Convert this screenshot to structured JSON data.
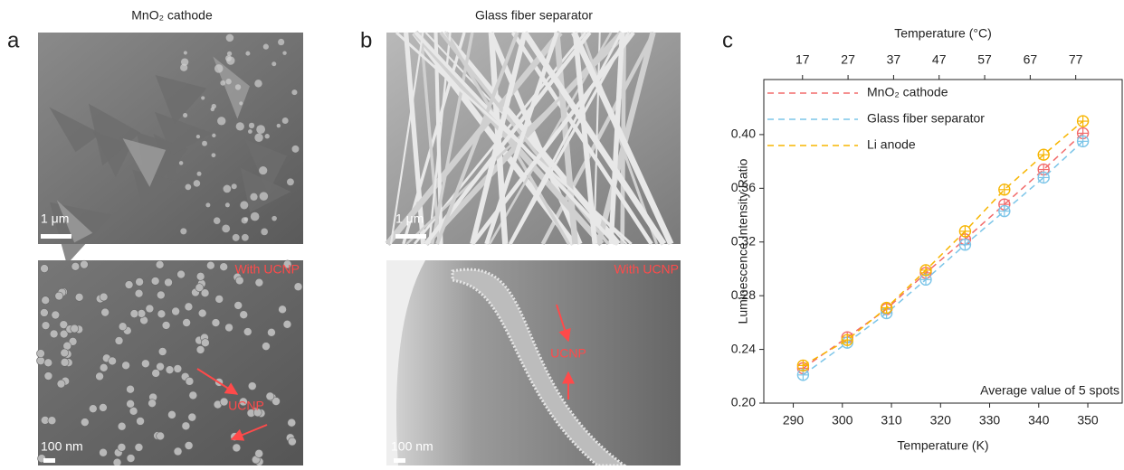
{
  "panels": [
    {
      "label": "a",
      "title": "MnO₂ cathode",
      "top_scale": "1 μm",
      "bottom_note": "With UCNP",
      "bottom_arrow_label": "UCNP",
      "bottom_scale": "100 nm"
    },
    {
      "label": "b",
      "title": "Glass fiber separator",
      "top_scale": "1 μm",
      "bottom_note": "With UCNP",
      "bottom_arrow_label": "UCNP",
      "bottom_scale": "100 nm"
    }
  ],
  "chart_panel_label": "c",
  "chart_data": {
    "type": "scatter",
    "xlabel": "Temperature (K)",
    "x2label": "Temperature (°C)",
    "ylabel": "Luminescence Intensity Ratio",
    "annotation": "Average value of 5 spots",
    "x": [
      292,
      301,
      309,
      317,
      325,
      333,
      341,
      349
    ],
    "series": [
      {
        "name": "MnO₂ cathode",
        "color": "#f26b6b",
        "values": [
          0.226,
          0.249,
          0.27,
          0.297,
          0.322,
          0.348,
          0.374,
          0.401
        ]
      },
      {
        "name": "Glass fiber separator",
        "color": "#7cc5e8",
        "values": [
          0.221,
          0.245,
          0.267,
          0.292,
          0.318,
          0.343,
          0.368,
          0.395
        ]
      },
      {
        "name": "Li anode",
        "color": "#f7b500",
        "values": [
          0.228,
          0.247,
          0.271,
          0.299,
          0.328,
          0.359,
          0.385,
          0.41
        ]
      }
    ],
    "xlim": [
      284,
      357
    ],
    "xticks": [
      290,
      300,
      310,
      320,
      330,
      340,
      350
    ],
    "x2lim": [
      8.5,
      87.2
    ],
    "x2ticks": [
      17,
      27,
      37,
      47,
      57,
      67,
      77
    ],
    "ylim": [
      0.2,
      0.441
    ],
    "yticks": [
      {
        "value": 0.2,
        "label": "0.20"
      },
      {
        "value": 0.24,
        "label": "0.24"
      },
      {
        "value": 0.28,
        "label": "0.28"
      },
      {
        "value": 0.32,
        "label": "0.32"
      },
      {
        "value": 0.36,
        "label": "0.36"
      },
      {
        "value": 0.4,
        "label": "0.40"
      }
    ],
    "legend": "upper left",
    "marker": "circle-plus",
    "line_style": "dashed"
  }
}
